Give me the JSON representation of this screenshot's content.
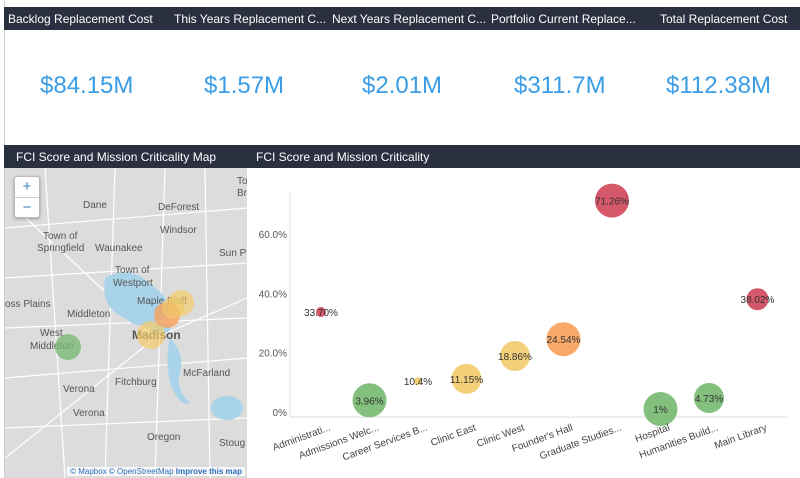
{
  "kpis": [
    {
      "label": "Backlog Replacement Cost",
      "value": "$84.15M"
    },
    {
      "label": "This Years Replacement C...",
      "value": "$1.57M"
    },
    {
      "label": "Next Years Replacement C...",
      "value": "$2.01M"
    },
    {
      "label": "Portfolio Current Replace...",
      "value": "$311.7M"
    },
    {
      "label": "Total Replacement Cost",
      "value": "$112.38M"
    }
  ],
  "map": {
    "title": "FCI Score and Mission Criticality Map",
    "zoom_in": "+",
    "zoom_out": "−",
    "places": [
      "Dane",
      "DeForest",
      "Windsor",
      "Town of",
      "Springfield",
      "Waunakee",
      "Town of",
      "Westport",
      "Maple Bluff",
      "Madison",
      "Middleton",
      "West",
      "Middleton",
      "Fitchburg",
      "McFarland",
      "Verona",
      "Verona",
      "Oregon",
      "Sun P",
      "Town",
      "Bris",
      "oss Plains",
      "Stoug"
    ],
    "attribution": {
      "mapbox": "© Mapbox",
      "osm": "© OpenStreetMap",
      "improve": "Improve this map"
    }
  },
  "chart_data": {
    "type": "scatter",
    "title": "FCI Score and Mission Criticality",
    "categories": [
      "Administrati...",
      "Admissions Welc...",
      "Career Services B...",
      "Clinic East",
      "Clinic West",
      "Founder's Hall",
      "Graduate Studies...",
      "Hospital",
      "Humanities Build...",
      "Main Library"
    ],
    "values": [
      33.7,
      3.96,
      10.4,
      11.15,
      18.86,
      24.54,
      71.26,
      1,
      4.73,
      38.02
    ],
    "labels": [
      "33.70%",
      "3.96%",
      "10.4%",
      "11.15%",
      "18.86%",
      "24.54%",
      "71.26%",
      "1%",
      "4.73%",
      "38.02%"
    ],
    "bubble_size_rank": [
      1,
      5,
      1,
      4,
      4,
      5,
      5,
      5,
      4,
      3
    ],
    "colors": [
      "#d0465a",
      "#75b96f",
      "#f2cb6a",
      "#f2cb6a",
      "#f2cb6a",
      "#f7a05a",
      "#d0465a",
      "#75b96f",
      "#75b96f",
      "#d0465a"
    ],
    "yticks": [
      "0%",
      "20.0%",
      "40.0%",
      "60.0%"
    ],
    "ylim": [
      0,
      75
    ],
    "grid": false
  }
}
